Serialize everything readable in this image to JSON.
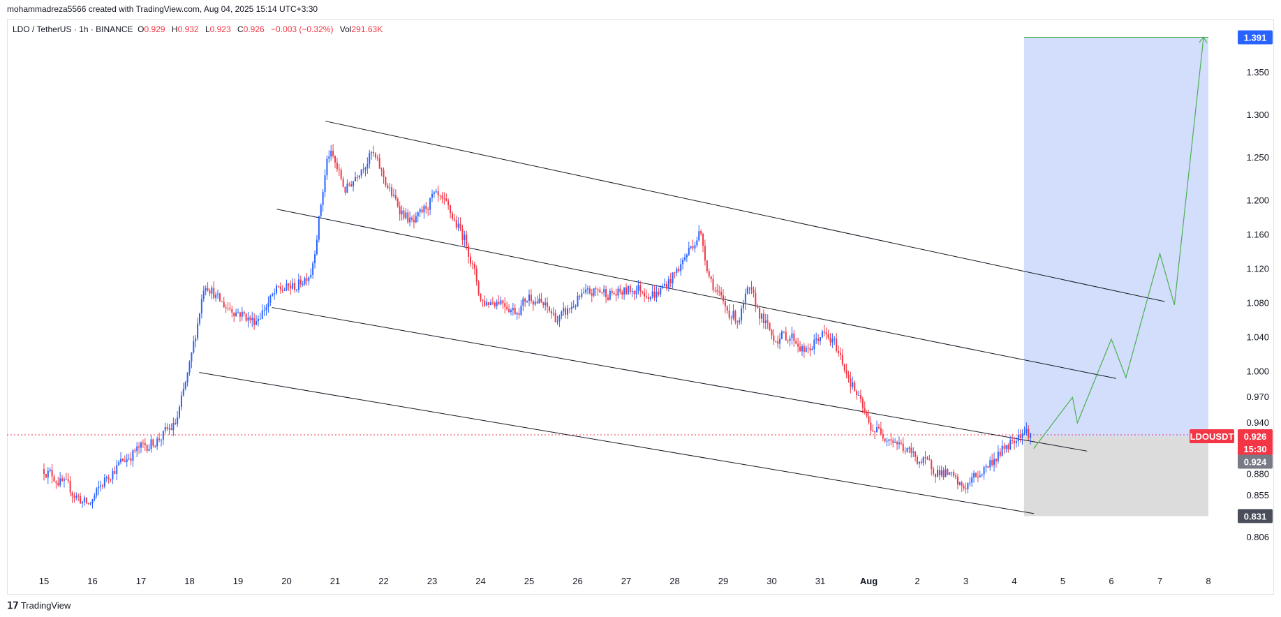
{
  "header": {
    "author_line": "mohammadreza5566 created with TradingView.com, Aug 04, 2025 15:14 UTC+3:30"
  },
  "legend": {
    "symbol": "LDO / TetherUS · 1h · BINANCE",
    "open_label": "O",
    "open": "0.929",
    "high_label": "H",
    "high": "0.932",
    "low_label": "L",
    "low": "0.923",
    "close_label": "C",
    "close": "0.926",
    "change": "−0.003 (−0.32%)",
    "vol_label": "Vol",
    "vol": "291.63K"
  },
  "footer": {
    "brand": "TradingView"
  },
  "colors": {
    "up": "#2962ff",
    "down": "#f23645",
    "target_zone": "#d2defb",
    "stop_zone": "#dcdcdc",
    "projection": "#4caf50",
    "channel": "#131722",
    "price_line": "#f23645"
  },
  "chart_data": {
    "type": "candlestick",
    "symbol": "LDOUSDT",
    "interval": "1h",
    "x_ticks": [
      "15",
      "16",
      "17",
      "18",
      "19",
      "20",
      "21",
      "22",
      "23",
      "24",
      "25",
      "26",
      "27",
      "28",
      "29",
      "30",
      "31",
      "Aug",
      "2",
      "3",
      "4",
      "5",
      "6",
      "7",
      "8"
    ],
    "y_ticks": [
      "1.350",
      "1.300",
      "1.250",
      "1.200",
      "1.160",
      "1.120",
      "1.080",
      "1.040",
      "1.000",
      "0.970",
      "0.940",
      "0.880",
      "0.855",
      "0.806"
    ],
    "ylim": [
      0.79,
      1.4
    ],
    "price_path": [
      [
        15.0,
        0.886
      ],
      [
        15.5,
        0.862
      ],
      [
        15.9,
        0.842
      ],
      [
        16.3,
        0.88
      ],
      [
        16.8,
        0.905
      ],
      [
        17.3,
        0.92
      ],
      [
        17.7,
        0.938
      ],
      [
        18.0,
        1.01
      ],
      [
        18.3,
        1.11
      ],
      [
        18.6,
        1.08
      ],
      [
        19.0,
        1.07
      ],
      [
        19.3,
        1.058
      ],
      [
        19.8,
        1.095
      ],
      [
        20.2,
        1.1
      ],
      [
        20.5,
        1.12
      ],
      [
        20.85,
        1.262
      ],
      [
        21.2,
        1.21
      ],
      [
        21.5,
        1.24
      ],
      [
        21.75,
        1.255
      ],
      [
        22.2,
        1.2
      ],
      [
        22.6,
        1.17
      ],
      [
        23.0,
        1.205
      ],
      [
        23.3,
        1.19
      ],
      [
        23.7,
        1.15
      ],
      [
        24.0,
        1.08
      ],
      [
        24.4,
        1.085
      ],
      [
        24.7,
        1.07
      ],
      [
        25.0,
        1.09
      ],
      [
        25.3,
        1.075
      ],
      [
        25.6,
        1.06
      ],
      [
        26.0,
        1.085
      ],
      [
        26.4,
        1.095
      ],
      [
        26.8,
        1.09
      ],
      [
        27.2,
        1.098
      ],
      [
        27.6,
        1.09
      ],
      [
        28.0,
        1.115
      ],
      [
        28.3,
        1.145
      ],
      [
        28.5,
        1.165
      ],
      [
        28.7,
        1.11
      ],
      [
        29.0,
        1.075
      ],
      [
        29.3,
        1.06
      ],
      [
        29.5,
        1.095
      ],
      [
        29.8,
        1.06
      ],
      [
        30.0,
        1.04
      ],
      [
        30.4,
        1.042
      ],
      [
        30.7,
        1.02
      ],
      [
        31.0,
        1.045
      ],
      [
        31.3,
        1.03
      ],
      [
        31.6,
        0.99
      ],
      [
        32.0,
        0.935
      ],
      [
        32.4,
        0.925
      ],
      [
        32.8,
        0.905
      ],
      [
        33.2,
        0.89
      ],
      [
        33.6,
        0.88
      ],
      [
        33.9,
        0.862
      ],
      [
        34.2,
        0.878
      ],
      [
        34.6,
        0.9
      ],
      [
        35.0,
        0.925
      ],
      [
        35.15,
        0.932
      ],
      [
        35.35,
        0.926
      ]
    ],
    "last_price": "0.926",
    "countdown": "15:30",
    "ticker_tag": "LDOUSDT",
    "target_price": "1.391",
    "entry_price": "0.924",
    "stop_price": "0.831",
    "position_zone": {
      "x_start": 35.2,
      "x_end": 39.0,
      "target": 1.391,
      "entry": 0.924,
      "stop": 0.831
    },
    "channel_lines": [
      {
        "from": [
          20.8,
          1.293
        ],
        "to": [
          38.1,
          1.082
        ]
      },
      {
        "from": [
          19.8,
          1.19
        ],
        "to": [
          37.1,
          0.992
        ]
      },
      {
        "from": [
          19.7,
          1.075
        ],
        "to": [
          36.5,
          0.907
        ]
      },
      {
        "from": [
          18.2,
          0.999
        ],
        "to": [
          35.4,
          0.834
        ]
      }
    ],
    "projection_path": [
      [
        35.4,
        0.91
      ],
      [
        36.2,
        0.97
      ],
      [
        36.3,
        0.94
      ],
      [
        37.0,
        1.038
      ],
      [
        37.3,
        0.993
      ],
      [
        38.0,
        1.138
      ],
      [
        38.3,
        1.078
      ],
      [
        38.9,
        1.391
      ]
    ]
  }
}
